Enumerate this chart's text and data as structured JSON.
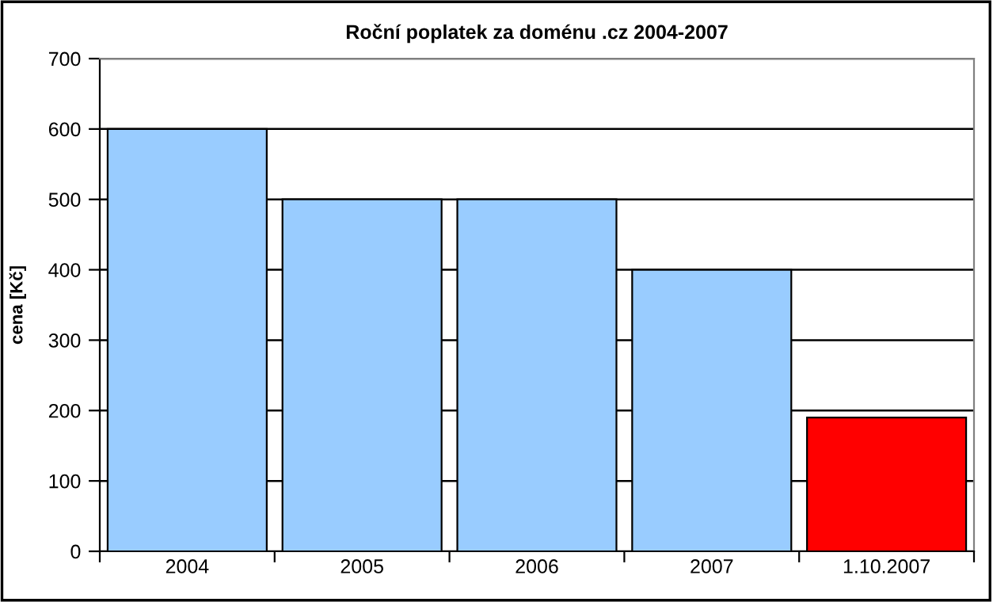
{
  "chart_data": {
    "type": "bar",
    "title": "Roční poplatek za doménu .cz 2004-2007",
    "ylabel": "cena [Kč]",
    "categories": [
      "2004",
      "2005",
      "2006",
      "2007",
      "1.10.2007"
    ],
    "values": [
      600,
      500,
      500,
      400,
      190
    ],
    "colors": [
      "#99ccff",
      "#99ccff",
      "#99ccff",
      "#99ccff",
      "#ff0000"
    ],
    "ylim": [
      0,
      700
    ],
    "yticks": [
      0,
      100,
      200,
      300,
      400,
      500,
      600,
      700
    ],
    "grid": "y",
    "legend": false
  }
}
